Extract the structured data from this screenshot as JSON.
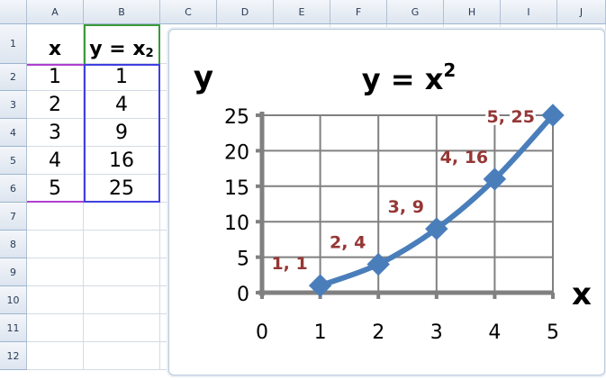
{
  "sheet": {
    "columns": [
      "A",
      "B",
      "C",
      "D",
      "E",
      "F",
      "G",
      "H",
      "I",
      "J"
    ],
    "rows": [
      "1",
      "2",
      "3",
      "4",
      "5",
      "6",
      "7",
      "8",
      "9",
      "10",
      "11",
      "12"
    ],
    "header_row": {
      "A": "x",
      "B_base": "y  = x",
      "B_exp": "2"
    },
    "data": [
      [
        "1",
        "1"
      ],
      [
        "2",
        "4"
      ],
      [
        "3",
        "9"
      ],
      [
        "4",
        "16"
      ],
      [
        "5",
        "25"
      ]
    ]
  },
  "chart_data": {
    "type": "line",
    "title_base": "y  = x",
    "title_exp": "2",
    "xlabel": "x",
    "ylabel": "y",
    "x": [
      1,
      2,
      3,
      4,
      5
    ],
    "y": [
      1,
      4,
      9,
      16,
      25
    ],
    "xlim": [
      0,
      5
    ],
    "ylim": [
      0,
      25
    ],
    "xticks": [
      "0",
      "1",
      "2",
      "3",
      "4",
      "5"
    ],
    "yticks": [
      "0",
      "5",
      "10",
      "15",
      "20",
      "25"
    ],
    "data_labels": [
      "1, 1",
      "2, 4",
      "3, 9",
      "4, 16",
      "5, 25"
    ],
    "smoothed": true,
    "marker": "diamond",
    "grid": true,
    "legend": "none",
    "colors": {
      "line": "#4a7ebb",
      "labels": "#953735",
      "grid": "#808080"
    }
  }
}
